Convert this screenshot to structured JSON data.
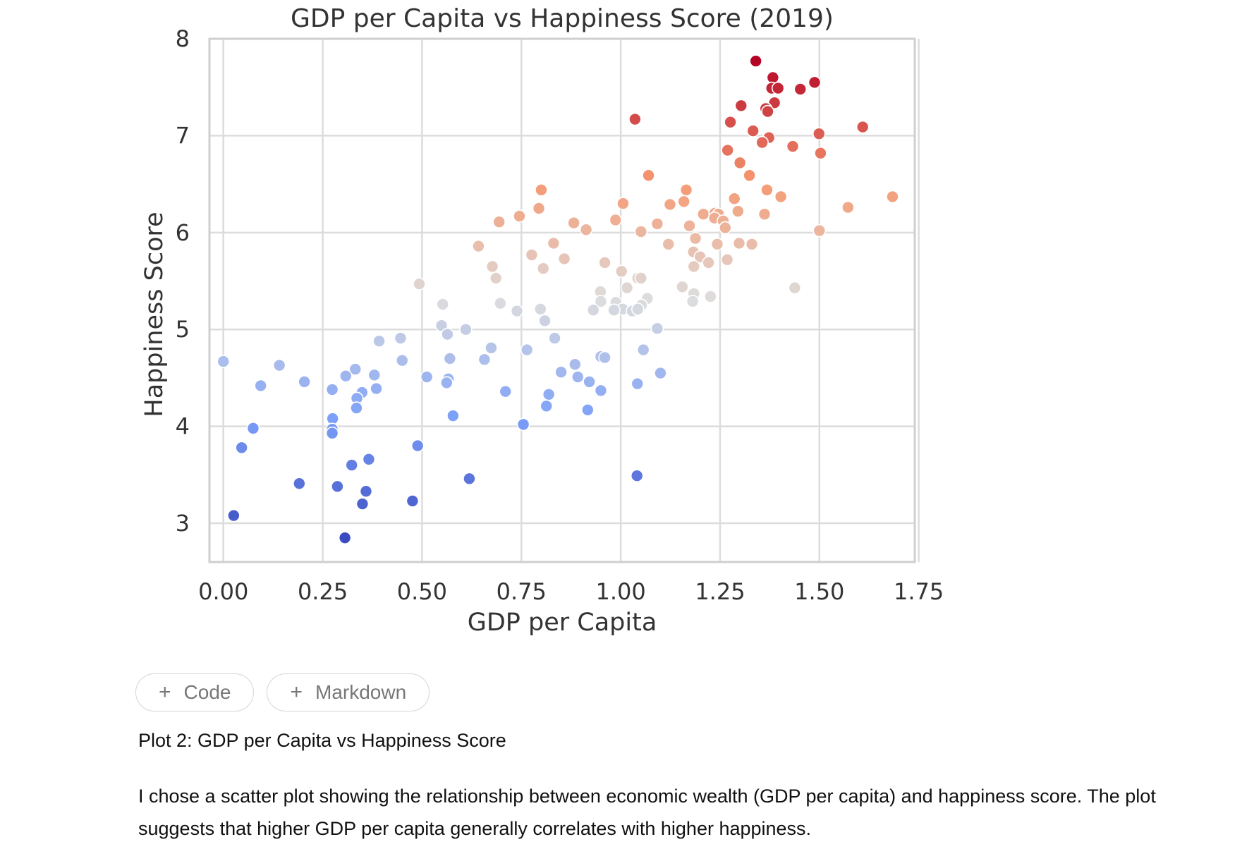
{
  "chart_data": {
    "type": "scatter",
    "title": "GDP per Capita vs Happiness Score (2019)",
    "xlabel": "GDP per Capita",
    "ylabel": "Happiness Score",
    "xlim": [
      -0.035,
      1.74
    ],
    "ylim": [
      2.6,
      8.0
    ],
    "xticks": [
      "0.00",
      "0.25",
      "0.50",
      "0.75",
      "1.00",
      "1.25",
      "1.50",
      "1.75"
    ],
    "xtick_values": [
      0.0,
      0.25,
      0.5,
      0.75,
      1.0,
      1.25,
      1.5,
      1.75
    ],
    "yticks": [
      "3",
      "4",
      "5",
      "6",
      "7",
      "8"
    ],
    "ytick_values": [
      3,
      4,
      5,
      6,
      7,
      8
    ],
    "grid": true,
    "colormap": "coolwarm",
    "color_by": "y",
    "points": [
      {
        "x": 1.34,
        "y": 7.77
      },
      {
        "x": 1.383,
        "y": 7.6
      },
      {
        "x": 1.488,
        "y": 7.55
      },
      {
        "x": 1.38,
        "y": 7.49
      },
      {
        "x": 1.396,
        "y": 7.49
      },
      {
        "x": 1.452,
        "y": 7.48
      },
      {
        "x": 1.387,
        "y": 7.34
      },
      {
        "x": 1.303,
        "y": 7.31
      },
      {
        "x": 1.365,
        "y": 7.28
      },
      {
        "x": 1.37,
        "y": 7.25
      },
      {
        "x": 1.036,
        "y": 7.17
      },
      {
        "x": 1.276,
        "y": 7.14
      },
      {
        "x": 1.609,
        "y": 7.09
      },
      {
        "x": 1.333,
        "y": 7.05
      },
      {
        "x": 1.499,
        "y": 7.02
      },
      {
        "x": 1.373,
        "y": 6.98
      },
      {
        "x": 1.356,
        "y": 6.93
      },
      {
        "x": 1.433,
        "y": 6.89
      },
      {
        "x": 1.269,
        "y": 6.85
      },
      {
        "x": 1.503,
        "y": 6.82
      },
      {
        "x": 1.3,
        "y": 6.72
      },
      {
        "x": 1.07,
        "y": 6.59
      },
      {
        "x": 1.324,
        "y": 6.59
      },
      {
        "x": 0.8,
        "y": 6.44
      },
      {
        "x": 1.165,
        "y": 6.44
      },
      {
        "x": 1.368,
        "y": 6.44
      },
      {
        "x": 1.684,
        "y": 6.37
      },
      {
        "x": 1.403,
        "y": 6.37
      },
      {
        "x": 1.286,
        "y": 6.35
      },
      {
        "x": 1.159,
        "y": 6.32
      },
      {
        "x": 1.006,
        "y": 6.3
      },
      {
        "x": 1.124,
        "y": 6.29
      },
      {
        "x": 0.794,
        "y": 6.25
      },
      {
        "x": 1.572,
        "y": 6.26
      },
      {
        "x": 1.295,
        "y": 6.22
      },
      {
        "x": 1.362,
        "y": 6.19
      },
      {
        "x": 0.745,
        "y": 6.17
      },
      {
        "x": 1.208,
        "y": 6.19
      },
      {
        "x": 1.237,
        "y": 6.2
      },
      {
        "x": 1.246,
        "y": 6.19
      },
      {
        "x": 1.236,
        "y": 6.15
      },
      {
        "x": 1.258,
        "y": 6.12
      },
      {
        "x": 0.694,
        "y": 6.11
      },
      {
        "x": 0.987,
        "y": 6.13
      },
      {
        "x": 0.882,
        "y": 6.1
      },
      {
        "x": 1.092,
        "y": 6.09
      },
      {
        "x": 1.173,
        "y": 6.07
      },
      {
        "x": 1.263,
        "y": 6.05
      },
      {
        "x": 0.913,
        "y": 6.03
      },
      {
        "x": 1.051,
        "y": 6.01
      },
      {
        "x": 1.5,
        "y": 6.02
      },
      {
        "x": 1.188,
        "y": 5.94
      },
      {
        "x": 0.831,
        "y": 5.89
      },
      {
        "x": 1.12,
        "y": 5.88
      },
      {
        "x": 1.243,
        "y": 5.88
      },
      {
        "x": 1.298,
        "y": 5.89
      },
      {
        "x": 1.33,
        "y": 5.88
      },
      {
        "x": 0.642,
        "y": 5.86
      },
      {
        "x": 1.183,
        "y": 5.8
      },
      {
        "x": 0.776,
        "y": 5.77
      },
      {
        "x": 1.2,
        "y": 5.75
      },
      {
        "x": 0.858,
        "y": 5.73
      },
      {
        "x": 1.268,
        "y": 5.72
      },
      {
        "x": 0.96,
        "y": 5.69
      },
      {
        "x": 1.221,
        "y": 5.69
      },
      {
        "x": 0.677,
        "y": 5.65
      },
      {
        "x": 1.184,
        "y": 5.65
      },
      {
        "x": 0.805,
        "y": 5.63
      },
      {
        "x": 1.002,
        "y": 5.6
      },
      {
        "x": 0.686,
        "y": 5.53
      },
      {
        "x": 1.043,
        "y": 5.53
      },
      {
        "x": 1.051,
        "y": 5.53
      },
      {
        "x": 0.493,
        "y": 5.47
      },
      {
        "x": 1.016,
        "y": 5.43
      },
      {
        "x": 1.155,
        "y": 5.44
      },
      {
        "x": 1.438,
        "y": 5.43
      },
      {
        "x": 0.949,
        "y": 5.39
      },
      {
        "x": 1.184,
        "y": 5.37
      },
      {
        "x": 1.226,
        "y": 5.34
      },
      {
        "x": 1.067,
        "y": 5.32
      },
      {
        "x": 0.552,
        "y": 5.26
      },
      {
        "x": 0.697,
        "y": 5.27
      },
      {
        "x": 0.95,
        "y": 5.29
      },
      {
        "x": 0.988,
        "y": 5.28
      },
      {
        "x": 1.181,
        "y": 5.29
      },
      {
        "x": 1.052,
        "y": 5.25
      },
      {
        "x": 1.005,
        "y": 5.21
      },
      {
        "x": 0.798,
        "y": 5.21
      },
      {
        "x": 0.739,
        "y": 5.19
      },
      {
        "x": 0.931,
        "y": 5.2
      },
      {
        "x": 0.983,
        "y": 5.2
      },
      {
        "x": 1.029,
        "y": 5.19
      },
      {
        "x": 1.043,
        "y": 5.21
      },
      {
        "x": 0.809,
        "y": 5.09
      },
      {
        "x": 0.549,
        "y": 5.04
      },
      {
        "x": 0.61,
        "y": 5.0
      },
      {
        "x": 1.092,
        "y": 5.01
      },
      {
        "x": 0.564,
        "y": 4.95
      },
      {
        "x": 0.446,
        "y": 4.91
      },
      {
        "x": 0.392,
        "y": 4.88
      },
      {
        "x": 0.834,
        "y": 4.91
      },
      {
        "x": 0.674,
        "y": 4.81
      },
      {
        "x": 0.764,
        "y": 4.79
      },
      {
        "x": 1.057,
        "y": 4.79
      },
      {
        "x": 0.95,
        "y": 4.72
      },
      {
        "x": 0.96,
        "y": 4.71
      },
      {
        "x": 0.57,
        "y": 4.7
      },
      {
        "x": 0.657,
        "y": 4.69
      },
      {
        "x": 0.45,
        "y": 4.68
      },
      {
        "x": 0.0,
        "y": 4.67
      },
      {
        "x": 0.141,
        "y": 4.63
      },
      {
        "x": 0.885,
        "y": 4.64
      },
      {
        "x": 0.332,
        "y": 4.59
      },
      {
        "x": 0.85,
        "y": 4.56
      },
      {
        "x": 1.1,
        "y": 4.55
      },
      {
        "x": 0.38,
        "y": 4.53
      },
      {
        "x": 0.308,
        "y": 4.52
      },
      {
        "x": 0.512,
        "y": 4.51
      },
      {
        "x": 0.892,
        "y": 4.51
      },
      {
        "x": 0.566,
        "y": 4.49
      },
      {
        "x": 0.204,
        "y": 4.46
      },
      {
        "x": 0.562,
        "y": 4.45
      },
      {
        "x": 0.921,
        "y": 4.46
      },
      {
        "x": 1.042,
        "y": 4.44
      },
      {
        "x": 0.094,
        "y": 4.42
      },
      {
        "x": 0.274,
        "y": 4.38
      },
      {
        "x": 0.385,
        "y": 4.39
      },
      {
        "x": 0.349,
        "y": 4.35
      },
      {
        "x": 0.71,
        "y": 4.36
      },
      {
        "x": 0.95,
        "y": 4.37
      },
      {
        "x": 0.819,
        "y": 4.33
      },
      {
        "x": 0.336,
        "y": 4.29
      },
      {
        "x": 0.813,
        "y": 4.21
      },
      {
        "x": 0.335,
        "y": 4.19
      },
      {
        "x": 0.917,
        "y": 4.17
      },
      {
        "x": 0.578,
        "y": 4.11
      },
      {
        "x": 0.275,
        "y": 4.08
      },
      {
        "x": 0.755,
        "y": 4.02
      },
      {
        "x": 0.075,
        "y": 3.98
      },
      {
        "x": 0.274,
        "y": 3.97
      },
      {
        "x": 0.274,
        "y": 3.93
      },
      {
        "x": 0.489,
        "y": 3.8
      },
      {
        "x": 0.046,
        "y": 3.78
      },
      {
        "x": 0.366,
        "y": 3.66
      },
      {
        "x": 0.323,
        "y": 3.6
      },
      {
        "x": 1.041,
        "y": 3.49
      },
      {
        "x": 0.619,
        "y": 3.46
      },
      {
        "x": 0.191,
        "y": 3.41
      },
      {
        "x": 0.287,
        "y": 3.38
      },
      {
        "x": 0.359,
        "y": 3.33
      },
      {
        "x": 0.476,
        "y": 3.23
      },
      {
        "x": 0.35,
        "y": 3.2
      },
      {
        "x": 0.026,
        "y": 3.08
      },
      {
        "x": 0.306,
        "y": 2.85
      }
    ]
  },
  "toolbar": {
    "add_code_label": "Code",
    "add_markdown_label": "Markdown"
  },
  "markdown": {
    "heading": "Plot 2: GDP per Capita vs Happiness Score",
    "paragraph": "I chose a scatter plot showing the relationship between economic wealth (GDP per capita) and happiness score. The plot suggests that higher GDP per capita generally correlates with higher happiness."
  }
}
